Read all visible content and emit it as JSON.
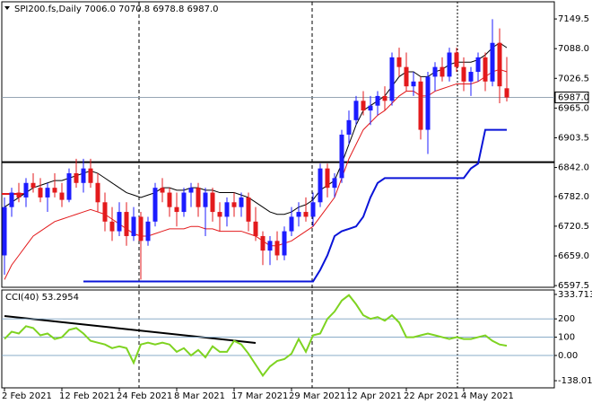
{
  "chart_data": [
    {
      "type": "candlestick",
      "title": "SPI200.fs,Daily  7006.0 7070.8 6978.8 6987.0",
      "categories": [
        "2 Feb 2021",
        null,
        null,
        null,
        null,
        null,
        null,
        null,
        "12 Feb 2021",
        null,
        null,
        null,
        null,
        null,
        null,
        null,
        "24 Feb 2021",
        null,
        null,
        null,
        null,
        null,
        null,
        null,
        "8 Mar 2021",
        null,
        null,
        null,
        null,
        null,
        null,
        null,
        "17 Mar 2021",
        null,
        null,
        null,
        null,
        null,
        null,
        null,
        "29 Mar 2021",
        null,
        null,
        null,
        null,
        null,
        null,
        null,
        "12 Apr 2021",
        null,
        null,
        null,
        null,
        null,
        null,
        null,
        "22 Apr 2021",
        null,
        null,
        null,
        null,
        null,
        null,
        null,
        "4 May 2021",
        null,
        null,
        null,
        null,
        null,
        null
      ],
      "open": [
        6660,
        6760,
        6790,
        6780,
        6810,
        6800,
        6780,
        6800,
        6790,
        6775,
        6830,
        6810,
        6840,
        6810,
        6770,
        6730,
        6710,
        6750,
        6700,
        6740,
        6690,
        6730,
        6800,
        6790,
        6760,
        6750,
        6790,
        6800,
        6760,
        6790,
        6750,
        6740,
        6770,
        6760,
        6780,
        6730,
        6700,
        6670,
        6690,
        6660,
        6710,
        6740,
        6750,
        6740,
        6770,
        6840,
        6800,
        6820,
        6910,
        6940,
        6980,
        6960,
        6970,
        6990,
        6980,
        7070,
        7050,
        7010,
        7020,
        6920,
        7030,
        7050,
        7030,
        7080,
        7050,
        7020,
        7040,
        7070,
        7020,
        7100,
        7006
      ],
      "high": [
        6780,
        6800,
        6810,
        6820,
        6830,
        6820,
        6810,
        6830,
        6810,
        6840,
        6860,
        6860,
        6860,
        6830,
        6790,
        6760,
        6770,
        6770,
        6760,
        6750,
        6740,
        6810,
        6820,
        6800,
        6790,
        6800,
        6810,
        6810,
        6800,
        6800,
        6770,
        6780,
        6790,
        6790,
        6790,
        6760,
        6710,
        6700,
        6710,
        6720,
        6760,
        6770,
        6780,
        6790,
        6850,
        6850,
        6830,
        6920,
        6960,
        6990,
        7000,
        6990,
        7000,
        7010,
        7080,
        7090,
        7080,
        7040,
        7030,
        7040,
        7060,
        7070,
        7090,
        7090,
        7070,
        7050,
        7080,
        7080,
        7149,
        7130,
        7070.8
      ],
      "low": [
        6620,
        6740,
        6770,
        6760,
        6790,
        6770,
        6750,
        6780,
        6760,
        6770,
        6800,
        6790,
        6800,
        6750,
        6710,
        6690,
        6700,
        6680,
        6690,
        6610,
        6680,
        6720,
        6770,
        6740,
        6720,
        6740,
        6760,
        6740,
        6700,
        6730,
        6710,
        6720,
        6740,
        6740,
        6710,
        6690,
        6640,
        6640,
        6650,
        6650,
        6700,
        6720,
        6730,
        6720,
        6760,
        6780,
        6780,
        6810,
        6890,
        6930,
        6950,
        6930,
        6950,
        6960,
        6970,
        7030,
        7000,
        6990,
        6900,
        6870,
        7000,
        7020,
        7020,
        7040,
        7000,
        6990,
        7020,
        7000,
        7010,
        6975,
        6978.8
      ],
      "close": [
        6760,
        6790,
        6780,
        6810,
        6800,
        6780,
        6800,
        6790,
        6775,
        6830,
        6810,
        6840,
        6810,
        6770,
        6730,
        6710,
        6750,
        6700,
        6740,
        6690,
        6730,
        6800,
        6790,
        6760,
        6750,
        6790,
        6800,
        6760,
        6790,
        6750,
        6740,
        6770,
        6760,
        6780,
        6730,
        6700,
        6670,
        6690,
        6660,
        6710,
        6740,
        6750,
        6740,
        6770,
        6840,
        6800,
        6820,
        6910,
        6940,
        6980,
        6960,
        6970,
        6990,
        6980,
        7070,
        7050,
        7010,
        7020,
        6920,
        7030,
        7050,
        7030,
        7080,
        7050,
        7020,
        7040,
        7070,
        7020,
        7100,
        7010,
        6987
      ],
      "up_color": "#1c1cff",
      "down_color": "#e31a1c",
      "series": [
        {
          "color": "#000000",
          "values": [
            6760,
            6770,
            6780,
            6790,
            6800,
            6805,
            6810,
            6815,
            6815,
            6820,
            6825,
            6830,
            6835,
            6830,
            6820,
            6810,
            6800,
            6790,
            6785,
            6780,
            6785,
            6790,
            6800,
            6800,
            6795,
            6795,
            6800,
            6800,
            6795,
            6795,
            6790,
            6790,
            6790,
            6785,
            6780,
            6770,
            6760,
            6750,
            6745,
            6745,
            6750,
            6760,
            6765,
            6775,
            6795,
            6805,
            6815,
            6850,
            6890,
            6930,
            6960,
            6970,
            6980,
            6990,
            7010,
            7030,
            7040,
            7040,
            7030,
            7030,
            7040,
            7045,
            7055,
            7060,
            7060,
            7060,
            7065,
            7075,
            7090,
            7100,
            7090
          ]
        },
        {
          "color": "#e31a1c",
          "values": [
            6610,
            6640,
            6660,
            6680,
            6700,
            6710,
            6720,
            6730,
            6735,
            6740,
            6745,
            6750,
            6755,
            6750,
            6745,
            6735,
            6725,
            6715,
            6705,
            6700,
            6700,
            6705,
            6710,
            6715,
            6715,
            6715,
            6720,
            6720,
            6715,
            6715,
            6710,
            6710,
            6710,
            6710,
            6705,
            6700,
            6690,
            6680,
            6680,
            6685,
            6690,
            6700,
            6710,
            6720,
            6740,
            6760,
            6780,
            6820,
            6860,
            6890,
            6920,
            6935,
            6950,
            6960,
            6975,
            6990,
            7000,
            7000,
            6990,
            6990,
            7000,
            7005,
            7010,
            7015,
            7015,
            7015,
            7020,
            7030,
            7040,
            7045,
            7040
          ]
        },
        {
          "color": "#0a14d8",
          "values": [
            null,
            null,
            null,
            null,
            null,
            null,
            null,
            null,
            null,
            null,
            null,
            6606,
            6606,
            6606,
            6606,
            6606,
            6606,
            6606,
            6606,
            6606,
            6606,
            6606,
            6606,
            6606,
            6606,
            6606,
            6606,
            6606,
            6606,
            6606,
            6606,
            6606,
            6606,
            6606,
            6606,
            6606,
            6606,
            6606,
            6606,
            6606,
            6606,
            6606,
            6606,
            6606,
            6630,
            6660,
            6700,
            6710,
            6715,
            6720,
            6740,
            6780,
            6810,
            6820,
            6820,
            6820,
            6820,
            6820,
            6820,
            6820,
            6820,
            6820,
            6820,
            6820,
            6820,
            6840,
            6850,
            6920,
            6920,
            6920,
            6920
          ]
        }
      ],
      "levels": [
        6853
      ],
      "current_price": {
        "value": 6987,
        "label": "6987.0"
      },
      "ylim": [
        6594,
        7185
      ],
      "yticks": [
        7149.5,
        {
          "value": 7088,
          "label": "7088.0"
        },
        7026.5,
        {
          "value": 6965,
          "label": "6965.0"
        },
        6903.5,
        {
          "value": 6842,
          "label": "6842.0"
        },
        {
          "value": 6782,
          "label": "6782.0"
        },
        6720.5,
        {
          "value": 6659,
          "label": "6659.0"
        },
        6597.5
      ]
    },
    {
      "type": "line",
      "title": "CCI(40) 53.2954",
      "color": "#7ed321",
      "values": [
        90,
        130,
        120,
        160,
        150,
        110,
        120,
        90,
        100,
        140,
        150,
        120,
        80,
        70,
        60,
        40,
        50,
        40,
        -40,
        60,
        70,
        60,
        70,
        60,
        20,
        40,
        0,
        30,
        -10,
        50,
        20,
        20,
        80,
        60,
        10,
        -50,
        -110,
        -60,
        -30,
        -20,
        10,
        90,
        20,
        110,
        120,
        200,
        240,
        300,
        330,
        280,
        220,
        200,
        210,
        190,
        220,
        180,
        100,
        100,
        110,
        120,
        110,
        100,
        90,
        100,
        90,
        90,
        100,
        110,
        80,
        60,
        53.2954
      ],
      "levels": [
        200,
        100,
        0
      ],
      "ylim": [
        -177,
        358
      ],
      "yticks": [
        333.7135,
        200,
        100,
        {
          "value": 0,
          "label": "0.00"
        },
        -138.0124
      ]
    }
  ]
}
